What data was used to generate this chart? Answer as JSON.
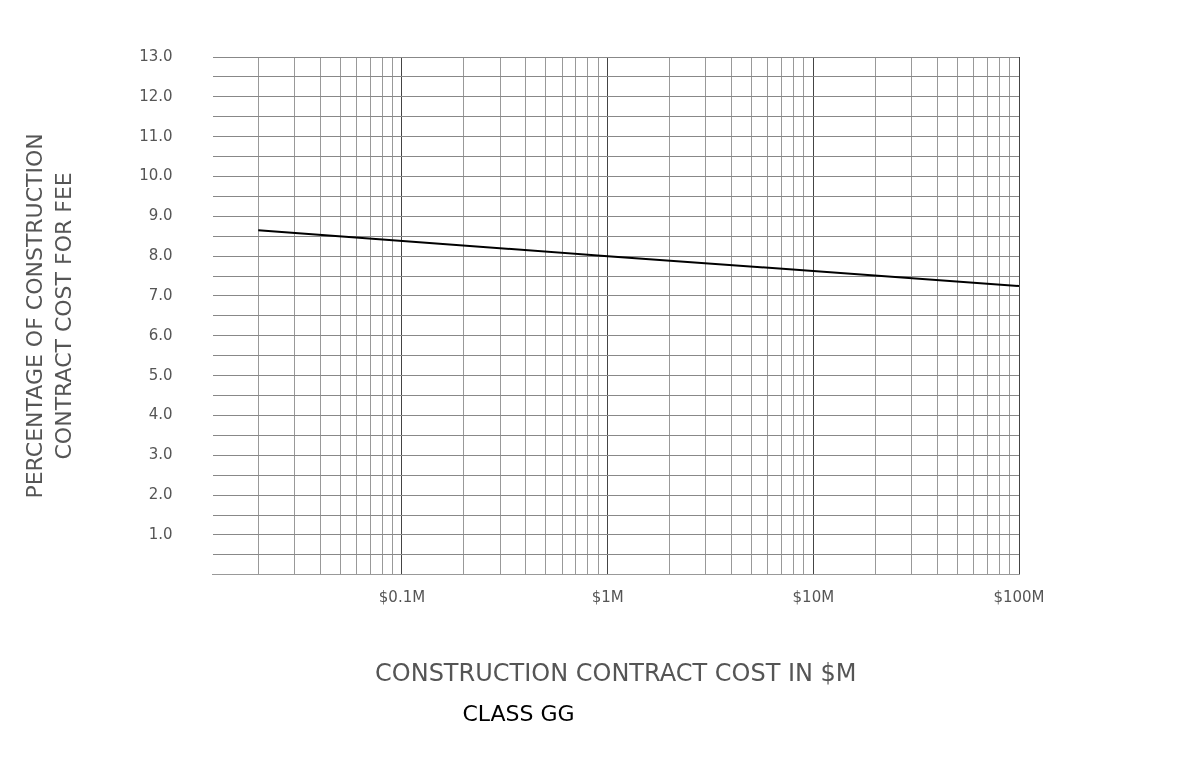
{
  "chart_data": {
    "type": "line",
    "title": "CLASS GG",
    "xlabel": "CONSTRUCTION CONTRACT COST IN $M",
    "ylabel": "PERCENTAGE OF CONSTRUCTION\nCONTRACT COST FOR FEE",
    "log": "x",
    "grid": true,
    "legend": false,
    "marker": "none",
    "line_style": "solid",
    "xlim": [
      0.012,
      100
    ],
    "xticks": [
      {
        "value": 0.1,
        "label": "$0.1M"
      },
      {
        "value": 1,
        "label": "$1M"
      },
      {
        "value": 10,
        "label": "$10M"
      },
      {
        "value": 100,
        "label": "$100M"
      }
    ],
    "ylim": [
      0,
      13
    ],
    "yticks": [
      {
        "value": 0,
        "label": null
      },
      {
        "value": 0.5,
        "label": null
      },
      {
        "value": 1,
        "label": "1.0"
      },
      {
        "value": 1.5,
        "label": null
      },
      {
        "value": 2,
        "label": "2.0"
      },
      {
        "value": 2.5,
        "label": null
      },
      {
        "value": 3,
        "label": "3.0"
      },
      {
        "value": 3.5,
        "label": null
      },
      {
        "value": 4,
        "label": "4.0"
      },
      {
        "value": 4.5,
        "label": null
      },
      {
        "value": 5,
        "label": "5.0"
      },
      {
        "value": 5.5,
        "label": null
      },
      {
        "value": 6,
        "label": "6.0"
      },
      {
        "value": 6.5,
        "label": null
      },
      {
        "value": 7,
        "label": "7.0"
      },
      {
        "value": 7.5,
        "label": null
      },
      {
        "value": 8,
        "label": "8.0"
      },
      {
        "value": 8.5,
        "label": null
      },
      {
        "value": 9,
        "label": "9.0"
      },
      {
        "value": 9.5,
        "label": null
      },
      {
        "value": 10,
        "label": "10.0"
      },
      {
        "value": 10.5,
        "label": null
      },
      {
        "value": 11,
        "label": "11.0"
      },
      {
        "value": 11.5,
        "label": null
      },
      {
        "value": 12,
        "label": "12.0"
      },
      {
        "value": 12.5,
        "label": null
      },
      {
        "value": 13,
        "label": "13.0"
      }
    ],
    "series": [
      {
        "color": "#000000",
        "x": [
          0.02,
          1,
          100
        ],
        "values": [
          8.65,
          8.0,
          7.25
        ]
      }
    ]
  }
}
